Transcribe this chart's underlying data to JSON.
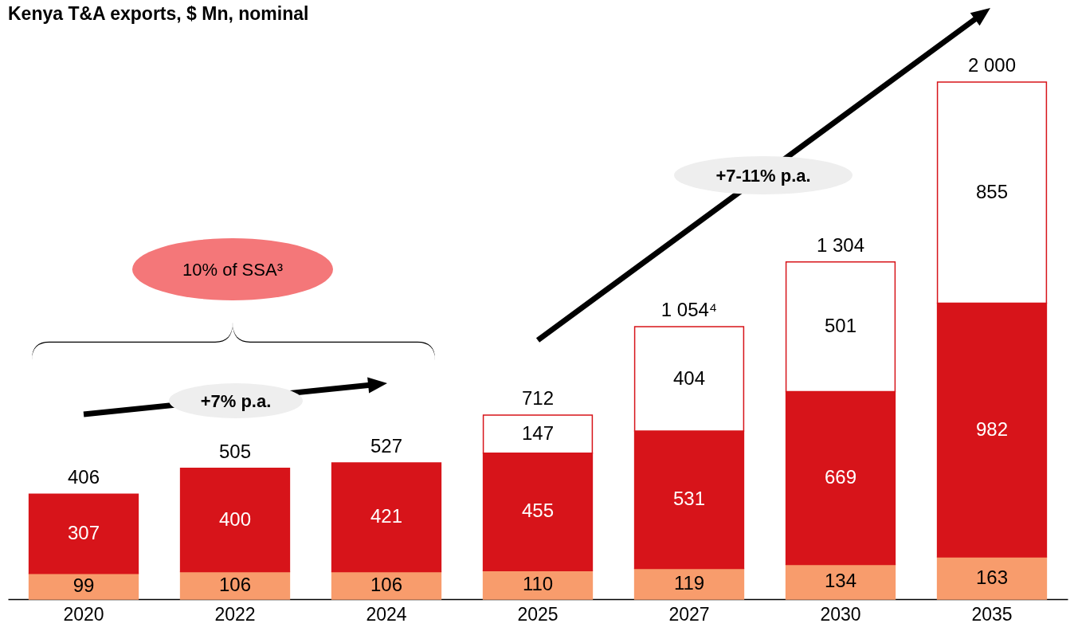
{
  "chart_data": {
    "type": "bar",
    "title": "Kenya T&A exports, $ Mn, nominal",
    "categories": [
      "2020",
      "2022",
      "2024",
      "2025",
      "2027",
      "2030",
      "2035"
    ],
    "stacked": true,
    "data_labels": true,
    "legend": false,
    "grid": false,
    "series": [
      {
        "color": "#f89c6c",
        "values": [
          99,
          106,
          106,
          110,
          119,
          134,
          163
        ]
      },
      {
        "color": "#d7141a",
        "values": [
          307,
          400,
          421,
          455,
          531,
          669,
          982
        ]
      },
      {
        "color": "#ffffff",
        "values": [
          null,
          null,
          null,
          147,
          404,
          501,
          855
        ]
      }
    ],
    "totals": [
      "406",
      "505",
      "527",
      "712",
      "1 054⁴",
      "1 304",
      "2 000"
    ],
    "annotations": [
      "+7-11% p.a.",
      "10% of SSA³",
      "+7% p.a."
    ]
  }
}
